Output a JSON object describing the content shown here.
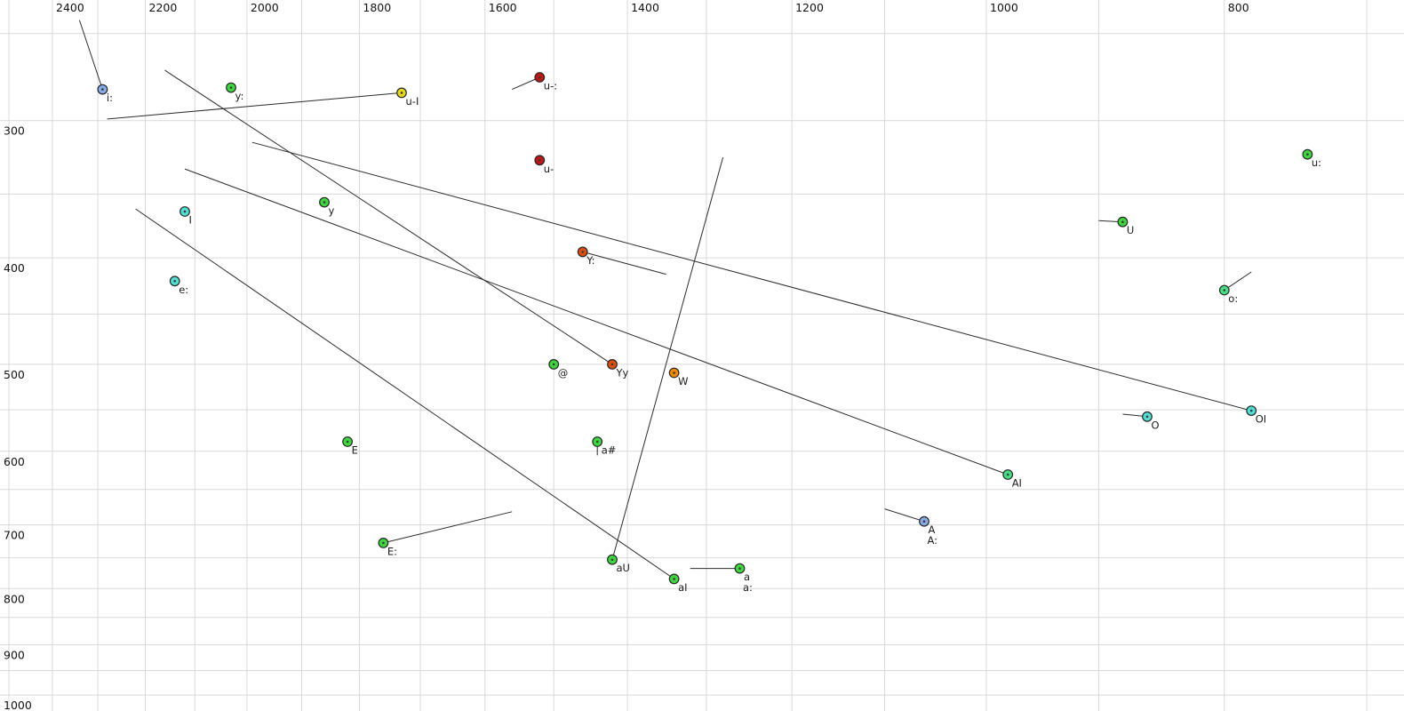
{
  "chart_data": {
    "type": "scatter",
    "title": "",
    "xlabel": "",
    "ylabel": "",
    "x_axis": {
      "position": "top",
      "scale": "log",
      "reversed": true,
      "unit": "Hz",
      "lim": [
        2521,
        676
      ],
      "tick_labels": [
        2400,
        2200,
        2000,
        1800,
        1600,
        1400,
        1200,
        1000,
        800
      ],
      "grid_from": 2500,
      "grid_to": 700,
      "grid_step": 100
    },
    "y_axis": {
      "position": "left",
      "scale": "log",
      "unit": "Hz",
      "lim": [
        233,
        1034
      ],
      "tick_labels": [
        300,
        400,
        500,
        600,
        700,
        800,
        900,
        1000
      ],
      "grid_from": 250,
      "grid_to": 1000,
      "grid_step": 50
    },
    "grid_on": true,
    "grid_color": "#d9d9d9",
    "line_color": "#2b2b2b",
    "label_color": "#1c1c1c",
    "marker_stroke": "#262626",
    "points": [
      {
        "label": "i:",
        "f2": 2290,
        "f1": 281,
        "color": "#86abe8"
      },
      {
        "label": "y:",
        "f2": 2030,
        "f1": 280,
        "color": "#3fd63f"
      },
      {
        "label": "u-I",
        "f2": 1730,
        "f1": 283,
        "color": "#e3d822"
      },
      {
        "label": "u-:",
        "f2": 1520,
        "f1": 274,
        "color": "#bf1616"
      },
      {
        "label": "u-",
        "f2": 1520,
        "f1": 326,
        "color": "#bf1616"
      },
      {
        "label": "I",
        "f2": 2120,
        "f1": 363,
        "color": "#52ded2"
      },
      {
        "label": "e:",
        "f2": 2140,
        "f1": 420,
        "color": "#52ded2"
      },
      {
        "label": "y",
        "f2": 1860,
        "f1": 356,
        "color": "#3fd63f"
      },
      {
        "label": "Y:",
        "f2": 1460,
        "f1": 395,
        "color": "#dd4f11"
      },
      {
        "label": "@",
        "f2": 1500,
        "f1": 500,
        "color": "#3fd63f"
      },
      {
        "label": "Yy",
        "f2": 1420,
        "f1": 500,
        "color": "#dd4f11"
      },
      {
        "label": "W",
        "f2": 1340,
        "f1": 509,
        "color": "#ee8800"
      },
      {
        "label": "E",
        "f2": 1820,
        "f1": 588,
        "color": "#3fd63f"
      },
      {
        "label": "a#",
        "f2": 1440,
        "f1": 588,
        "color": "#3fd63f"
      },
      {
        "label": "E:",
        "f2": 1760,
        "f1": 727,
        "color": "#3fd63f"
      },
      {
        "label": "aU",
        "f2": 1420,
        "f1": 753,
        "color": "#3fd63f"
      },
      {
        "label": "aI",
        "f2": 1340,
        "f1": 784,
        "color": "#3fd63f"
      },
      {
        "label": "a",
        "label2": "a:",
        "f2": 1260,
        "f1": 767,
        "color": "#3fd63f"
      },
      {
        "label": "A",
        "label2": "A:",
        "f2": 1060,
        "f1": 695,
        "color": "#86abe8"
      },
      {
        "label": "AI",
        "f2": 980,
        "f1": 630,
        "color": "#47dd85"
      },
      {
        "label": "O",
        "f2": 860,
        "f1": 558,
        "color": "#52ded2"
      },
      {
        "label": "OI",
        "f2": 780,
        "f1": 551,
        "color": "#52ded2"
      },
      {
        "label": "U",
        "f2": 880,
        "f1": 371,
        "color": "#3fd63f"
      },
      {
        "label": "u:",
        "f2": 740,
        "f1": 322,
        "color": "#3fd63f"
      },
      {
        "label": "o:",
        "f2": 800,
        "f1": 428,
        "color": "#47dd85"
      }
    ],
    "segments": [
      {
        "from": [
          2340,
          243
        ],
        "to": [
          2290,
          281
        ]
      },
      {
        "from": [
          2280,
          299
        ],
        "to": [
          1730,
          283
        ]
      },
      {
        "from": [
          1560,
          281
        ],
        "to": [
          1520,
          274
        ]
      },
      {
        "from": [
          2160,
          270
        ],
        "to": [
          1420,
          500
        ]
      },
      {
        "from": [
          1990,
          314
        ],
        "to": [
          780,
          551
        ]
      },
      {
        "from": [
          2120,
          332
        ],
        "to": [
          980,
          630
        ]
      },
      {
        "from": [
          2220,
          361
        ],
        "to": [
          1340,
          784
        ]
      },
      {
        "from": [
          1280,
          324
        ],
        "to": [
          1420,
          753
        ]
      },
      {
        "from": [
          1460,
          395
        ],
        "to": [
          1350,
          414
        ]
      },
      {
        "from": [
          1760,
          727
        ],
        "to": [
          1560,
          681
        ]
      },
      {
        "from": [
          900,
          370
        ],
        "to": [
          880,
          371
        ]
      },
      {
        "from": [
          880,
          555
        ],
        "to": [
          860,
          558
        ]
      },
      {
        "from": [
          800,
          428
        ],
        "to": [
          780,
          412
        ]
      },
      {
        "from": [
          1100,
          677
        ],
        "to": [
          1060,
          695
        ]
      },
      {
        "from": [
          1320,
          767
        ],
        "to": [
          1260,
          767
        ]
      },
      {
        "from": [
          1440,
          588
        ],
        "to": [
          1440,
          605
        ]
      }
    ]
  }
}
